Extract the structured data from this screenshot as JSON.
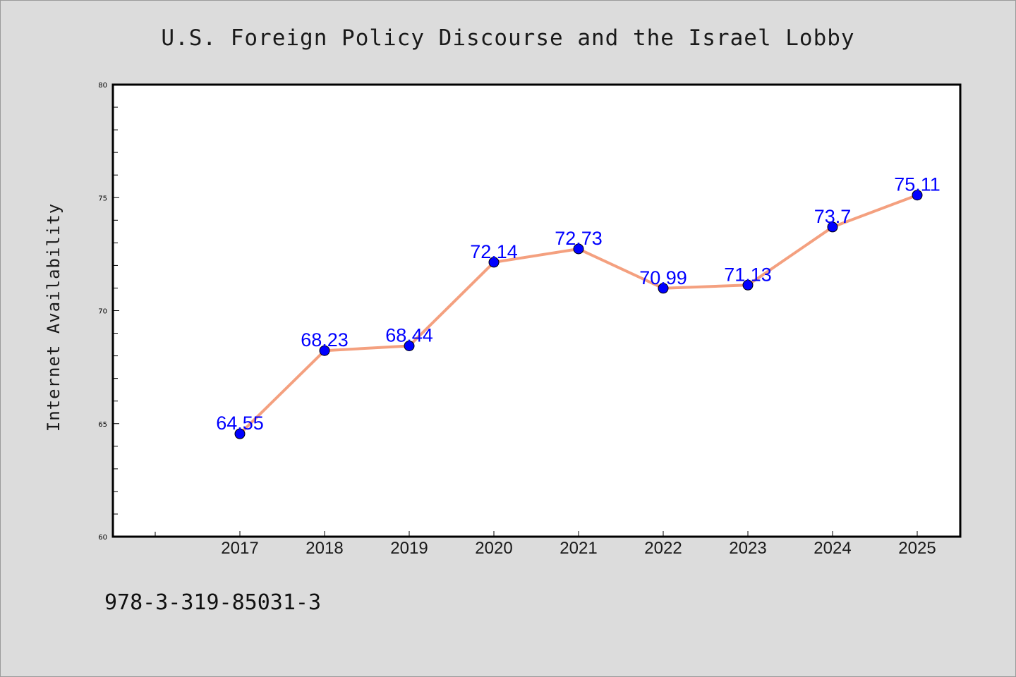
{
  "page": {
    "background": "#dcdcdc",
    "isbn": "978-3-319-85031-3"
  },
  "chart_data": {
    "type": "line",
    "title": "U.S. Foreign Policy Discourse and the Israel Lobby",
    "xlabel": "",
    "ylabel": "Internet Availability",
    "x": [
      "2017",
      "2018",
      "2019",
      "2020",
      "2021",
      "2022",
      "2023",
      "2024",
      "2025"
    ],
    "series": [
      {
        "values": [
          64.55,
          68.23,
          68.44,
          72.14,
          72.73,
          70.99,
          71.13,
          73.7,
          75.11
        ],
        "labels": [
          "64.55",
          "68.23",
          "68.44",
          "72.14",
          "72.73",
          "70.99",
          "71.13",
          "73.7",
          "75.11"
        ],
        "line_color": "#f4a07f",
        "marker_color": "#0000ff"
      }
    ],
    "ylim": [
      60,
      80
    ],
    "yticks": [
      "60",
      "65",
      "70",
      "75",
      "80"
    ],
    "grid": false,
    "legend": "none",
    "colors": {
      "plot_background": "#ffffff",
      "frame": "#000000",
      "label_color": "#0000ff"
    }
  }
}
